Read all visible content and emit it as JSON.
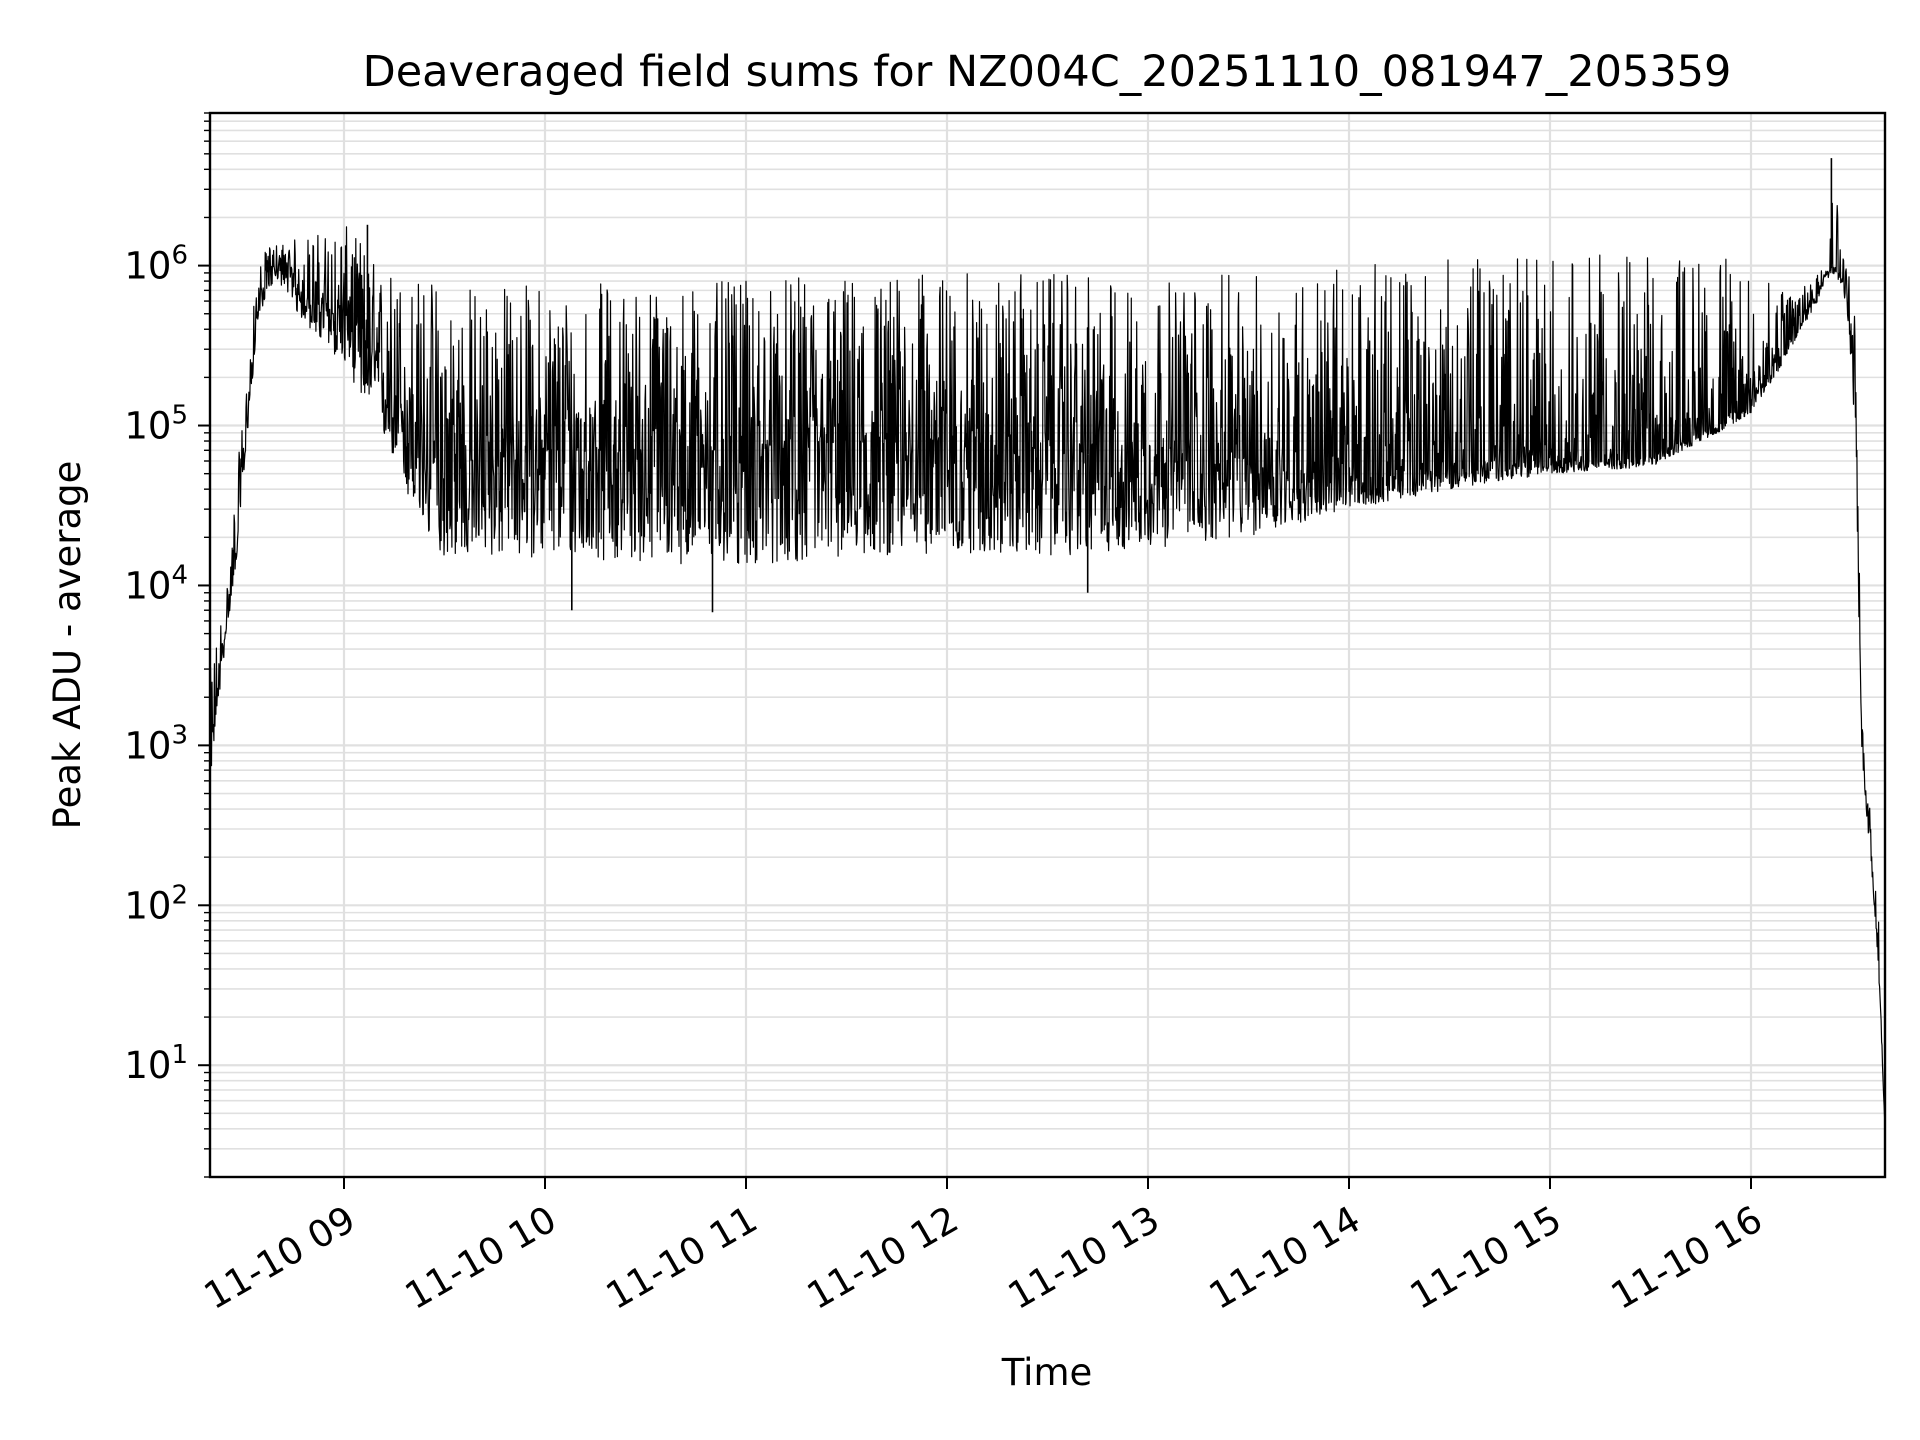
{
  "chart_data": {
    "type": "line",
    "title": "Deaveraged field sums for NZ004C_20251110_081947_205359",
    "xlabel": "Time",
    "ylabel": "Peak ADU - average",
    "yscale": "log",
    "ylim": [
      2,
      9000000
    ],
    "xlim": [
      "11-10 08:20",
      "11-10 16:40"
    ],
    "grid": true,
    "line_color": "#000000",
    "grid_color": "#e0e0e0",
    "x_ticks": [
      {
        "value": "11-10 09:00",
        "label": "11-10 09"
      },
      {
        "value": "11-10 10:00",
        "label": "11-10 10"
      },
      {
        "value": "11-10 11:00",
        "label": "11-10 11"
      },
      {
        "value": "11-10 12:00",
        "label": "11-10 12"
      },
      {
        "value": "11-10 13:00",
        "label": "11-10 13"
      },
      {
        "value": "11-10 14:00",
        "label": "11-10 14"
      },
      {
        "value": "11-10 15:00",
        "label": "11-10 15"
      },
      {
        "value": "11-10 16:00",
        "label": "11-10 16"
      }
    ],
    "y_ticks": [
      {
        "value": 10,
        "base": "10",
        "exp": "1"
      },
      {
        "value": 100,
        "base": "10",
        "exp": "2"
      },
      {
        "value": 1000,
        "base": "10",
        "exp": "3"
      },
      {
        "value": 10000,
        "base": "10",
        "exp": "4"
      },
      {
        "value": 100000,
        "base": "10",
        "exp": "5"
      },
      {
        "value": 1000000,
        "base": "10",
        "exp": "6"
      }
    ],
    "series": [
      {
        "x": [
          "11-10 08:20",
          "11-10 08:22",
          "11-10 08:25",
          "11-10 08:28",
          "11-10 08:31",
          "11-10 08:34",
          "11-10 08:37",
          "11-10 08:40",
          "11-10 08:43",
          "11-10 08:46",
          "11-10 08:50",
          "11-10 08:55",
          "11-10 09:00",
          "11-10 09:05",
          "11-10 09:10",
          "11-10 09:15",
          "11-10 09:20",
          "11-10 09:25",
          "11-10 09:30",
          "11-10 09:40",
          "11-10 10:00",
          "11-10 10:30",
          "11-10 11:00",
          "11-10 11:30",
          "11-10 12:00",
          "11-10 12:30",
          "11-10 13:00",
          "11-10 13:30",
          "11-10 14:00",
          "11-10 14:30",
          "11-10 15:00",
          "11-10 15:30",
          "11-10 15:50",
          "11-10 16:00",
          "11-10 16:10",
          "11-10 16:15",
          "11-10 16:20",
          "11-10 16:22",
          "11-10 16:25",
          "11-10 16:28",
          "11-10 16:31",
          "11-10 16:33",
          "11-10 16:34",
          "11-10 16:36",
          "11-10 16:38",
          "11-10 16:40"
        ],
        "y": [
          700,
          2000,
          6000,
          20000,
          100000,
          500000,
          900000,
          1000000,
          900000,
          700000,
          600000,
          500000,
          500000,
          400000,
          200000,
          150000,
          100000,
          60000,
          50000,
          60000,
          70000,
          70000,
          70000,
          75000,
          80000,
          70000,
          60000,
          55000,
          45000,
          55000,
          60000,
          65000,
          100000,
          150000,
          300000,
          450000,
          700000,
          900000,
          1000000,
          800000,
          200000,
          1200,
          600,
          200,
          50,
          4
        ],
        "y_lower_envelope": [
          600,
          1500,
          5000,
          15000,
          80000,
          400000,
          700000,
          800000,
          700000,
          500000,
          400000,
          300000,
          250000,
          150000,
          100000,
          60000,
          30000,
          20000,
          15000,
          15000,
          15000,
          14000,
          13000,
          15000,
          16000,
          15000,
          17000,
          20000,
          30000,
          40000,
          50000,
          55000,
          90000,
          120000,
          250000,
          400000,
          600000,
          800000,
          900000,
          600000,
          100000,
          1000,
          500,
          150,
          40,
          4
        ],
        "y_upper_envelope": [
          3000,
          5000,
          10000,
          50000,
          200000,
          900000,
          1300000,
          1400000,
          1400000,
          1500000,
          1600000,
          1700000,
          1800000,
          1500000,
          1000000,
          1000000,
          900000,
          900000,
          900000,
          800000,
          800000,
          800000,
          800000,
          900000,
          900000,
          900000,
          800000,
          900000,
          1000000,
          1100000,
          1200000,
          1200000,
          1200000,
          900000,
          700000,
          800000,
          1000000,
          1100000,
          4500000,
          1200000,
          1000000,
          1500,
          900,
          300,
          100,
          4
        ],
        "spikes": [
          {
            "x": "11-10 16:24",
            "y": 4700000
          },
          {
            "x": "11-10 09:07",
            "y": 1800000
          },
          {
            "x": "11-10 10:08",
            "y": 7000
          },
          {
            "x": "11-10 10:50",
            "y": 6800
          },
          {
            "x": "11-10 12:42",
            "y": 9000
          }
        ]
      }
    ]
  }
}
